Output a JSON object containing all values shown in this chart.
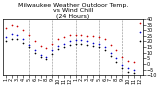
{
  "title": "Milwaukee Weather Outdoor Temp.\nvs Wind Chill\n(24 Hours)",
  "background_color": "#ffffff",
  "grid_color": "#888888",
  "x_tick_labels": [
    "1",
    "2",
    "3",
    "4",
    "5",
    "6",
    "7",
    "8",
    "9",
    "10",
    "11",
    "12",
    "1",
    "2",
    "3",
    "4",
    "5",
    "6",
    "7",
    "8",
    "9",
    "10",
    "11",
    "12"
  ],
  "ylim": [
    -10,
    40
  ],
  "yticks": [
    -10,
    -5,
    0,
    5,
    10,
    15,
    20,
    25,
    30,
    35,
    40
  ],
  "temp_x": [
    0,
    1,
    2,
    3,
    4,
    5,
    6,
    7,
    8,
    9,
    10,
    11,
    12,
    13,
    14,
    15,
    16,
    17,
    18,
    19,
    20,
    21,
    22,
    23
  ],
  "temp_y": [
    32,
    35,
    34,
    30,
    26,
    20,
    16,
    14,
    18,
    22,
    24,
    26,
    26,
    26,
    25,
    25,
    24,
    22,
    17,
    12,
    6,
    3,
    2,
    36
  ],
  "wind_x": [
    0,
    1,
    2,
    3,
    4,
    5,
    6,
    7,
    8,
    9,
    10,
    11,
    12,
    13,
    14,
    15,
    16,
    17,
    18,
    19,
    20,
    21,
    22,
    23
  ],
  "wind_y": [
    24,
    27,
    26,
    22,
    17,
    12,
    8,
    6,
    12,
    16,
    18,
    20,
    21,
    21,
    20,
    19,
    18,
    15,
    10,
    5,
    -1,
    -4,
    -5,
    28
  ],
  "dew_x": [
    0,
    1,
    2,
    3,
    4,
    5,
    6,
    7,
    8,
    9,
    10,
    11,
    12,
    13,
    14,
    15,
    16,
    17,
    18,
    19,
    20,
    21,
    22,
    23
  ],
  "dew_y": [
    20,
    22,
    22,
    19,
    15,
    10,
    6,
    4,
    9,
    13,
    15,
    17,
    18,
    18,
    17,
    16,
    15,
    12,
    7,
    2,
    -4,
    -7,
    -8,
    20
  ],
  "temp_color": "#cc0000",
  "wind_color": "#0000cc",
  "dew_color": "#000000",
  "vgrid_positions": [
    4,
    8,
    12,
    16,
    20
  ],
  "title_fontsize": 4.5,
  "tick_fontsize": 3.5,
  "ytick_fontsize": 3.5,
  "marker_size": 1.5
}
